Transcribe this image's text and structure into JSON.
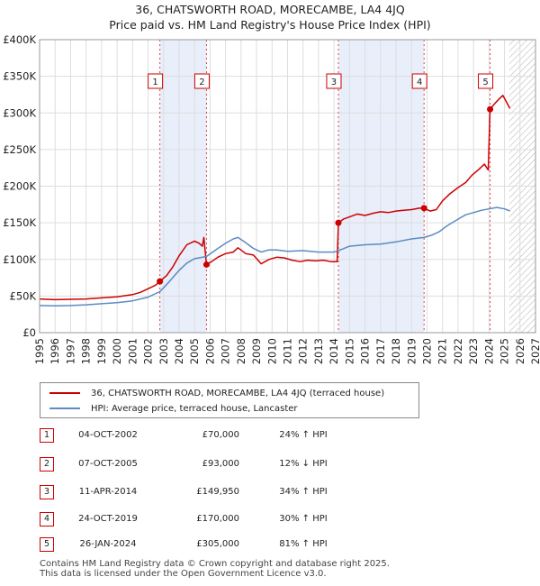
{
  "title_line1": "36, CHATSWORTH ROAD, MORECAMBE, LA4 4JQ",
  "title_line2": "Price paid vs. HM Land Registry's House Price Index (HPI)",
  "colors": {
    "property": "#cc0000",
    "hpi": "#5b8bc2",
    "shade": "#e8eefa",
    "grid": "#dddddd"
  },
  "chart_data": {
    "type": "line",
    "xlim": [
      1995,
      2027
    ],
    "ylim": [
      0,
      400000
    ],
    "x_ticks": [
      "1995",
      "1996",
      "1997",
      "1998",
      "1999",
      "2000",
      "2001",
      "2002",
      "2003",
      "2004",
      "2005",
      "2006",
      "2007",
      "2008",
      "2009",
      "2010",
      "2011",
      "2012",
      "2013",
      "2014",
      "2015",
      "2016",
      "2017",
      "2018",
      "2019",
      "2020",
      "2021",
      "2022",
      "2023",
      "2024",
      "2025",
      "2026",
      "2027"
    ],
    "y_ticks": [
      {
        "value": 0,
        "label": "£0"
      },
      {
        "value": 50000,
        "label": "£50K"
      },
      {
        "value": 100000,
        "label": "£100K"
      },
      {
        "value": 150000,
        "label": "£150K"
      },
      {
        "value": 200000,
        "label": "£200K"
      },
      {
        "value": 250000,
        "label": "£250K"
      },
      {
        "value": 300000,
        "label": "£300K"
      },
      {
        "value": 350000,
        "label": "£350K"
      },
      {
        "value": 400000,
        "label": "£400K"
      }
    ],
    "shaded_ranges": [
      [
        2002.76,
        2005.77
      ],
      [
        2014.28,
        2019.81
      ]
    ],
    "forecast_start": 2025.3,
    "series": [
      {
        "name": "36, CHATSWORTH ROAD, MORECAMBE, LA4 4JQ (terraced house)",
        "x": [
          1995,
          1996,
          1997,
          1998,
          1999,
          2000,
          2001,
          2001.5,
          2002,
          2002.5,
          2002.76,
          2003.2,
          2003.6,
          2004,
          2004.5,
          2005,
          2005.3,
          2005.5,
          2005.6,
          2005.77,
          2006.1,
          2006.5,
          2007,
          2007.5,
          2007.8,
          2008.3,
          2008.8,
          2009.3,
          2009.8,
          2010.3,
          2010.8,
          2011.3,
          2011.8,
          2012.3,
          2012.8,
          2013.3,
          2013.8,
          2014.2,
          2014.28,
          2014.6,
          2015,
          2015.5,
          2016,
          2016.5,
          2017,
          2017.5,
          2018,
          2018.5,
          2019,
          2019.5,
          2019.81,
          2020.2,
          2020.6,
          2021,
          2021.5,
          2022,
          2022.5,
          2022.9,
          2023.3,
          2023.7,
          2023.95,
          2024.07,
          2024.3,
          2024.6,
          2024.9,
          2025.2,
          2025.35
        ],
        "y": [
          46000,
          45000,
          45500,
          46000,
          47500,
          49000,
          52000,
          55000,
          60000,
          65000,
          70000,
          78000,
          90000,
          105000,
          120000,
          125000,
          122000,
          118000,
          130000,
          93000,
          97000,
          103000,
          108000,
          110000,
          116000,
          108000,
          106000,
          94000,
          100000,
          103000,
          102000,
          99000,
          97000,
          99000,
          98000,
          99000,
          97000,
          97000,
          149950,
          155000,
          158000,
          162000,
          160000,
          163000,
          165000,
          164000,
          166000,
          167000,
          168000,
          170000,
          170000,
          166000,
          168000,
          180000,
          190000,
          198000,
          205000,
          215000,
          222000,
          230000,
          222000,
          305000,
          311000,
          318000,
          324000,
          312000,
          306000
        ]
      },
      {
        "name": "HPI: Average price, terraced house, Lancaster",
        "x": [
          1995,
          1996,
          1997,
          1998,
          1999,
          2000,
          2001,
          2002,
          2002.76,
          2003.3,
          2004,
          2004.5,
          2005,
          2005.77,
          2006.5,
          2007,
          2007.5,
          2007.8,
          2008.3,
          2008.8,
          2009.3,
          2009.8,
          2010.3,
          2011,
          2012,
          2013,
          2014,
          2014.28,
          2015,
          2016,
          2017,
          2018,
          2019,
          2019.81,
          2020.3,
          2020.8,
          2021.3,
          2022,
          2022.5,
          2023,
          2023.5,
          2024,
          2024.5,
          2025,
          2025.35
        ],
        "y": [
          37000,
          36500,
          37000,
          38000,
          39500,
          41000,
          43500,
          48500,
          56000,
          68000,
          85000,
          95000,
          101000,
          104000,
          115000,
          122000,
          128000,
          130000,
          123000,
          115000,
          110000,
          113000,
          113000,
          111000,
          112000,
          110000,
          110000,
          112000,
          118000,
          120000,
          121000,
          124000,
          128000,
          130000,
          133000,
          138000,
          146000,
          155000,
          161000,
          164000,
          167000,
          169000,
          171000,
          169000,
          166000
        ]
      }
    ],
    "sales": [
      {
        "n": "1",
        "x": 2002.76,
        "y": 70000
      },
      {
        "n": "2",
        "x": 2005.77,
        "y": 93000
      },
      {
        "n": "3",
        "x": 2014.28,
        "y": 149950
      },
      {
        "n": "4",
        "x": 2019.81,
        "y": 170000
      },
      {
        "n": "5",
        "x": 2024.07,
        "y": 305000
      }
    ]
  },
  "legend": {
    "property_label": "36, CHATSWORTH ROAD, MORECAMBE, LA4 4JQ (terraced house)",
    "hpi_label": "HPI: Average price, terraced house, Lancaster"
  },
  "sales_table": [
    {
      "n": "1",
      "date": "04-OCT-2002",
      "price": "£70,000",
      "hpi": "24% ↑ HPI"
    },
    {
      "n": "2",
      "date": "07-OCT-2005",
      "price": "£93,000",
      "hpi": "12% ↓ HPI"
    },
    {
      "n": "3",
      "date": "11-APR-2014",
      "price": "£149,950",
      "hpi": "34% ↑ HPI"
    },
    {
      "n": "4",
      "date": "24-OCT-2019",
      "price": "£170,000",
      "hpi": "30% ↑ HPI"
    },
    {
      "n": "5",
      "date": "26-JAN-2024",
      "price": "£305,000",
      "hpi": "81% ↑ HPI"
    }
  ],
  "footer_line1": "Contains HM Land Registry data © Crown copyright and database right 2025.",
  "footer_line2": "This data is licensed under the Open Government Licence v3.0."
}
